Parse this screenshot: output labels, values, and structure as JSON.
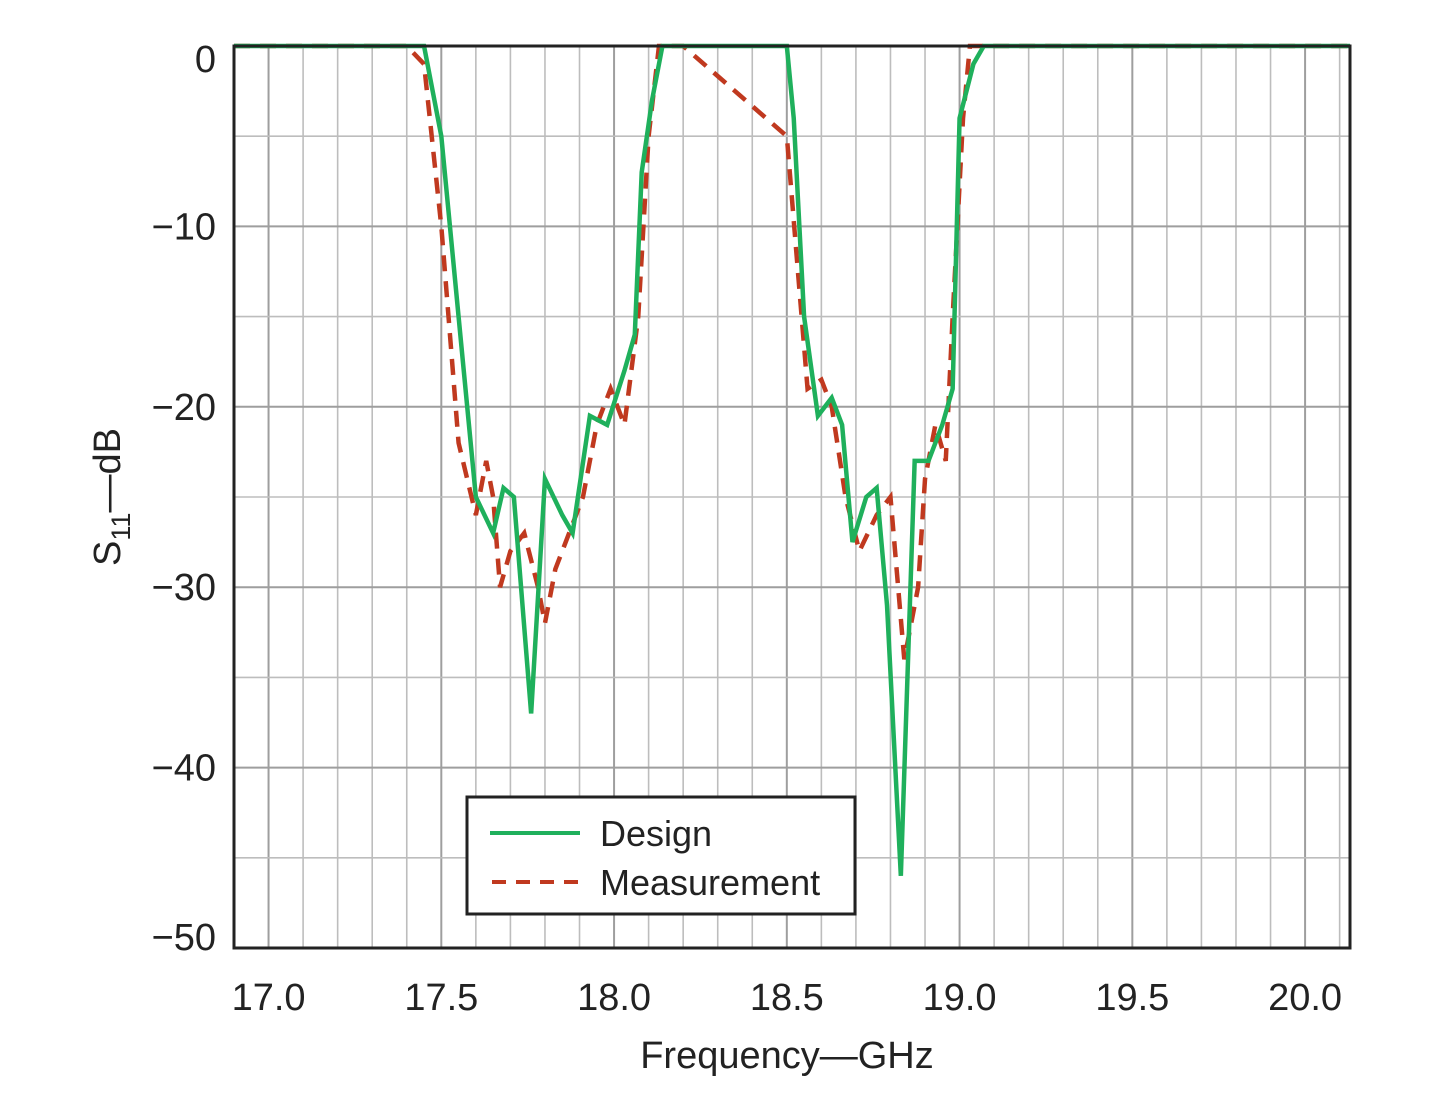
{
  "chart_data": {
    "type": "line",
    "title": "",
    "xlabel": "Frequency—GHz",
    "ylabel": "S11—dB",
    "ylabel_main": "S",
    "ylabel_sub": "11",
    "ylabel_unit": "—dB",
    "xlim": [
      16.9,
      20.13
    ],
    "ylim": [
      -50,
      0
    ],
    "x_ticks": [
      "17.0",
      "17.5",
      "18.0",
      "18.5",
      "19.0",
      "19.5",
      "20.0"
    ],
    "x_tick_values": [
      17.0,
      17.5,
      18.0,
      18.5,
      19.0,
      19.5,
      20.0
    ],
    "y_ticks": [
      "0",
      "−10",
      "−20",
      "−30",
      "−40",
      "−50"
    ],
    "y_tick_values": [
      0,
      -10,
      -20,
      -30,
      -40,
      -50
    ],
    "x_minor_step": 0.1,
    "y_minor_step": 5,
    "grid": true,
    "legend_position": "bottom-center",
    "colors": {
      "design": "#1fb05c",
      "measurement": "#c0391f",
      "grid": "#bdbdbd",
      "frame": "#222222"
    },
    "series": [
      {
        "name": "Design",
        "style": "solid",
        "x": [
          16.9,
          17.45,
          17.5,
          17.55,
          17.6,
          17.65,
          17.68,
          17.71,
          17.76,
          17.8,
          17.85,
          17.88,
          17.93,
          17.98,
          18.03,
          18.06,
          18.08,
          18.11,
          18.14,
          18.17,
          18.2,
          18.5,
          18.52,
          18.55,
          18.59,
          18.63,
          18.66,
          18.69,
          18.73,
          18.76,
          18.79,
          18.83,
          18.87,
          18.91,
          18.95,
          18.98,
          19.0,
          19.04,
          19.07,
          19.11,
          19.14,
          19.2,
          19.25,
          20.13
        ],
        "y": [
          0,
          0,
          -5,
          -15,
          -25,
          -27,
          -24.5,
          -25,
          -37,
          -24,
          -26,
          -27,
          -20.5,
          -21,
          -18,
          -16,
          -7,
          -3,
          0,
          0,
          0,
          0,
          -4,
          -15,
          -20.5,
          -19.5,
          -21,
          -27.5,
          -25,
          -24.5,
          -31,
          -46,
          -23,
          -23,
          -21,
          -19,
          -4,
          -1,
          0,
          0,
          0,
          0,
          0,
          0
        ]
      },
      {
        "name": "Measurement",
        "style": "dashed",
        "x": [
          16.9,
          17.4,
          17.45,
          17.5,
          17.55,
          17.6,
          17.63,
          17.65,
          17.67,
          17.7,
          17.74,
          17.78,
          17.8,
          17.83,
          17.87,
          17.91,
          17.95,
          17.99,
          18.03,
          18.07,
          18.1,
          18.13,
          18.16,
          18.2,
          18.5,
          18.53,
          18.56,
          18.6,
          18.63,
          18.67,
          18.71,
          18.76,
          18.8,
          18.84,
          18.88,
          18.9,
          18.93,
          18.96,
          18.98,
          19.01,
          19.03,
          19.07,
          19.1,
          19.15,
          19.2,
          20.13
        ],
        "y": [
          0,
          0,
          -1,
          -10,
          -22,
          -26,
          -23,
          -25,
          -30,
          -28,
          -27,
          -30,
          -32,
          -29,
          -27,
          -25,
          -21,
          -19,
          -21,
          -15,
          -5,
          0,
          0,
          0,
          -5,
          -12,
          -19,
          -18.5,
          -20,
          -25,
          -28,
          -26,
          -25,
          -34,
          -30,
          -24,
          -21,
          -23,
          -15,
          -4,
          0,
          0,
          0,
          0,
          0,
          0
        ]
      }
    ]
  }
}
